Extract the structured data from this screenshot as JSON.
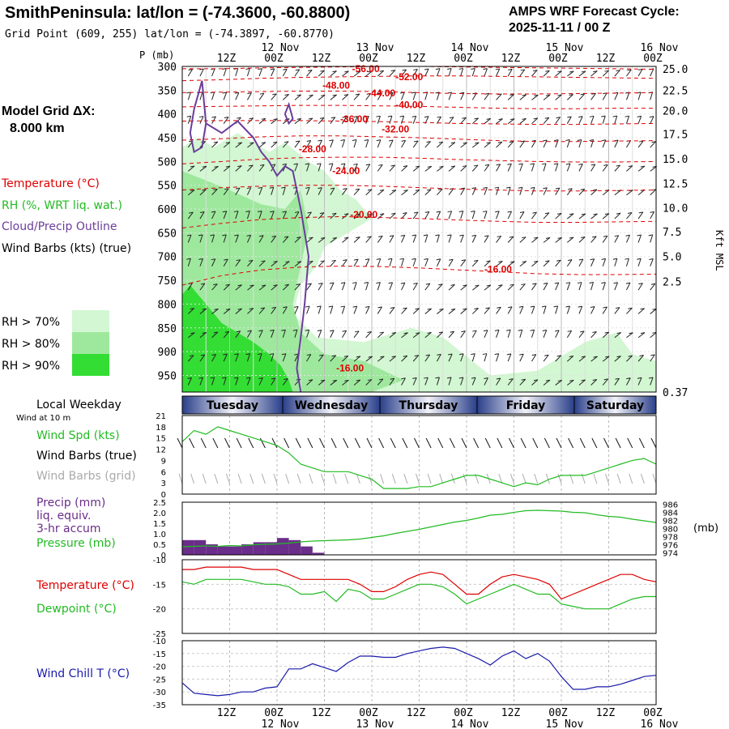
{
  "header": {
    "title": "SmithPeninsula:  lat/lon = (-74.3600, -60.8800)",
    "grid_point": "Grid Point (609, 255) lat/lon = (-74.3897, -60.8770)",
    "cycle_label": "AMPS WRF Forecast Cycle:",
    "cycle_value": "2025-11-11 / 00  Z"
  },
  "legend": {
    "model_grid_label": "Model Grid ΔX:",
    "model_grid_value": "8.000 km",
    "temperature": "Temperature (°C)",
    "rh": "RH (%, WRT liq. wat.)",
    "cloud": "Cloud/Precip Outline",
    "wind_barbs": "Wind Barbs (kts) (true)",
    "rh70": "RH > 70%",
    "rh80": "RH > 80%",
    "rh90": "RH > 90%"
  },
  "colors": {
    "rh70": "#d2f7d2",
    "rh80": "#9ee89e",
    "rh90": "#33dd33",
    "temperature": "#dd0000",
    "cloud": "#6a3d9a",
    "wind_spd": "#22bb22",
    "dewpoint": "#22bb22",
    "precip": "#6a2d8a",
    "pressure": "#22bb22",
    "windchill": "#1a1aaa",
    "grid_barb": "#aaaaaa"
  },
  "chart_data": [
    {
      "type": "contour",
      "name": "upper_air_crosssection",
      "pressure_label": "P (mb)",
      "height_label": "Kft MSL",
      "time_ticks": [
        "12Z",
        "00Z",
        "12Z",
        "00Z",
        "12Z",
        "00Z",
        "12Z",
        "00Z",
        "12Z",
        "00Z"
      ],
      "date_labels": [
        "12 Nov",
        "13 Nov",
        "14 Nov",
        "15 Nov",
        "16 Nov"
      ],
      "pressure_levels": [
        300,
        350,
        400,
        450,
        500,
        550,
        600,
        650,
        700,
        750,
        800,
        850,
        900,
        950
      ],
      "pressure_range": [
        300,
        985
      ],
      "height_ticks": [
        "25.0",
        "22.5",
        "20.0",
        "17.5",
        "15.0",
        "12.5",
        "10.0",
        "7.5",
        "5.0",
        "2.5",
        "0.37"
      ],
      "time_range_hours": [
        0,
        120
      ],
      "temperature_labels": [
        {
          "text": "-56.00",
          "t": 43.0,
          "p": 305
        },
        {
          "text": "-52.00",
          "t": 54.0,
          "p": 322
        },
        {
          "text": "-48.00",
          "t": 35.5,
          "p": 340
        },
        {
          "text": "-44.00",
          "t": 47.0,
          "p": 356
        },
        {
          "text": "-40.00",
          "t": 54.0,
          "p": 381
        },
        {
          "text": "-36.00",
          "t": 40.0,
          "p": 411
        },
        {
          "text": "-32.00",
          "t": 50.5,
          "p": 432
        },
        {
          "text": "-28.00",
          "t": 29.5,
          "p": 474
        },
        {
          "text": "-24.00",
          "t": 38.0,
          "p": 520
        },
        {
          "text": "-20.00",
          "t": 42.5,
          "p": 612
        },
        {
          "text": "-16.00",
          "t": 76.5,
          "p": 727
        },
        {
          "text": "-16.00",
          "t": 39.0,
          "p": 935
        }
      ],
      "temperature_isotherms_p": [
        [
          305,
          305,
          303,
          302,
          301,
          300,
          300,
          301,
          302,
          303,
          304,
          305,
          306
        ],
        [
          330,
          328,
          325,
          323,
          322,
          321,
          320,
          320,
          321,
          322,
          323,
          324,
          325
        ],
        [
          355,
          354,
          353,
          352,
          352,
          353,
          355,
          357,
          358,
          358,
          357,
          356,
          355
        ],
        [
          385,
          384,
          383,
          382,
          382,
          383,
          384,
          386,
          388,
          389,
          389,
          388,
          388
        ],
        [
          415,
          414,
          414,
          414,
          415,
          416,
          418,
          420,
          421,
          422,
          422,
          421,
          420
        ],
        [
          455,
          452,
          448,
          446,
          446,
          448,
          450,
          453,
          456,
          458,
          458,
          457,
          456
        ],
        [
          505,
          500,
          495,
          492,
          491,
          491,
          493,
          496,
          498,
          500,
          501,
          501,
          500
        ],
        [
          560,
          555,
          552,
          550,
          550,
          552,
          555,
          558,
          560,
          562,
          562,
          561,
          560
        ],
        [
          640,
          630,
          622,
          618,
          616,
          618,
          620,
          623,
          626,
          628,
          628,
          627,
          626
        ],
        [
          760,
          740,
          728,
          722,
          720,
          721,
          724,
          728,
          732,
          736,
          738,
          738,
          737
        ]
      ],
      "rh_regions": [
        {
          "level": 70,
          "pts": [
            [
              0,
              470
            ],
            [
              4,
              450
            ],
            [
              8,
              470
            ],
            [
              14,
              440
            ],
            [
              22,
              480
            ],
            [
              26,
              460
            ],
            [
              32,
              500
            ],
            [
              36,
              520
            ],
            [
              40,
              560
            ],
            [
              44,
              580
            ],
            [
              48,
              620
            ],
            [
              44,
              640
            ],
            [
              40,
              660
            ],
            [
              36,
              680
            ],
            [
              34,
              720
            ],
            [
              30,
              760
            ],
            [
              28,
              820
            ],
            [
              34,
              870
            ],
            [
              46,
              880
            ],
            [
              58,
              850
            ],
            [
              66,
              870
            ],
            [
              78,
              950
            ],
            [
              90,
              940
            ],
            [
              102,
              880
            ],
            [
              110,
              860
            ],
            [
              114,
              905
            ],
            [
              120,
              920
            ],
            [
              120,
              985
            ],
            [
              0,
              985
            ]
          ]
        },
        {
          "level": 80,
          "pts": [
            [
              0,
              520
            ],
            [
              6,
              540
            ],
            [
              12,
              560
            ],
            [
              20,
              590
            ],
            [
              26,
              600
            ],
            [
              30,
              560
            ],
            [
              32,
              640
            ],
            [
              30,
              720
            ],
            [
              28,
              800
            ],
            [
              30,
              860
            ],
            [
              36,
              905
            ],
            [
              46,
              920
            ],
            [
              56,
              960
            ],
            [
              48,
              985
            ],
            [
              0,
              985
            ]
          ]
        },
        {
          "level": 90,
          "pts": [
            [
              2,
              760
            ],
            [
              4,
              780
            ],
            [
              6,
              800
            ],
            [
              10,
              840
            ],
            [
              14,
              860
            ],
            [
              18,
              880
            ],
            [
              22,
              905
            ],
            [
              25,
              930
            ],
            [
              27,
              960
            ],
            [
              28,
              985
            ],
            [
              0,
              985
            ],
            [
              0,
              780
            ]
          ]
        }
      ],
      "cloud_outline": [
        [
          [
            5,
            330
          ],
          [
            6,
            420
          ],
          [
            5,
            470
          ],
          [
            3,
            480
          ],
          [
            2,
            440
          ],
          [
            3,
            390
          ],
          [
            5,
            330
          ]
        ],
        [
          [
            6,
            420
          ],
          [
            10,
            440
          ],
          [
            14,
            415
          ],
          [
            18,
            450
          ],
          [
            20,
            480
          ],
          [
            22,
            500
          ],
          [
            24,
            530
          ],
          [
            26,
            510
          ],
          [
            28,
            520
          ],
          [
            30,
            600
          ],
          [
            32,
            700
          ],
          [
            31,
            800
          ],
          [
            30,
            870
          ],
          [
            29,
            935
          ],
          [
            30,
            985
          ]
        ],
        [
          [
            26,
            400
          ],
          [
            27,
            380
          ],
          [
            28,
            410
          ],
          [
            27,
            420
          ],
          [
            26,
            400
          ]
        ]
      ]
    },
    {
      "type": "line",
      "name": "surface_wind",
      "label_local_weekday": "Local Weekday",
      "label_wind_at": "Wind at 10 m",
      "days": [
        "Tuesday",
        "Wednesday",
        "Thursday",
        "Friday",
        "Saturday"
      ],
      "ylabel_spd": "Wind Spd (kts)",
      "ylabel_barbs_true": "Wind Barbs (true)",
      "ylabel_barbs_grid": "Wind Barbs (grid)",
      "y_ticks": [
        "21",
        "18",
        "15",
        "12",
        "9",
        "6",
        "3",
        "0"
      ],
      "y_range": [
        0,
        21
      ],
      "time_hours": [
        0,
        3,
        6,
        9,
        12,
        15,
        18,
        21,
        24,
        27,
        30,
        33,
        36,
        39,
        42,
        45,
        48,
        51,
        54,
        57,
        60,
        63,
        66,
        69,
        72,
        75,
        78,
        81,
        84,
        87,
        90,
        93,
        96,
        99,
        102,
        105,
        108,
        111,
        114,
        117,
        120
      ],
      "wind_speed": [
        14,
        17,
        16,
        18,
        17,
        16,
        15,
        14,
        13,
        11,
        8,
        7,
        6,
        6,
        6,
        5,
        4,
        1.5,
        1.5,
        1.5,
        2,
        2,
        3,
        4,
        5,
        5,
        4,
        3,
        2,
        3,
        2.5,
        4,
        5,
        5,
        5,
        6,
        7,
        8,
        9,
        9.5,
        8
      ]
    },
    {
      "type": "line",
      "name": "precip_pressure",
      "ylabel_precip": "Precip (mm)",
      "ylabel_precip2": "liq. equiv.",
      "ylabel_precip3": "3-hr accum",
      "ylabel_pressure": "Pressure (mb)",
      "pressure_unit": "(mb)",
      "precip_ticks": [
        "2.5",
        "2.0",
        "1.5",
        "1.0",
        "0.5",
        "0"
      ],
      "pressure_ticks": [
        "986",
        "984",
        "982",
        "980",
        "978",
        "976",
        "974"
      ],
      "precip_range": [
        0,
        2.5
      ],
      "pressure_range": [
        973.5,
        986.5
      ],
      "time_hours": [
        0,
        3,
        6,
        9,
        12,
        15,
        18,
        21,
        24,
        27,
        30,
        33,
        36,
        39,
        42,
        45,
        48,
        51,
        54,
        57,
        60,
        63,
        66,
        69,
        72,
        75,
        78,
        81,
        84,
        87,
        90,
        93,
        96,
        99,
        102,
        105,
        108,
        111,
        114,
        117,
        120
      ],
      "precip_mm": [
        0.7,
        0.7,
        0.5,
        0.4,
        0.4,
        0.5,
        0.6,
        0.6,
        0.8,
        0.7,
        0.4,
        0.1,
        0,
        0,
        0,
        0,
        0,
        0,
        0,
        0,
        0,
        0,
        0,
        0,
        0,
        0,
        0,
        0,
        0,
        0,
        0,
        0,
        0,
        0,
        0,
        0,
        0,
        0,
        0,
        0,
        0
      ],
      "pressure_mb": [
        975.5,
        975.6,
        975.7,
        975.6,
        975.8,
        975.7,
        976.0,
        976.1,
        976.2,
        976.4,
        976.7,
        976.9,
        977.0,
        977.1,
        977.2,
        977.4,
        977.8,
        978.2,
        978.8,
        979.3,
        979.8,
        980.4,
        981.0,
        981.6,
        982.0,
        982.6,
        983.3,
        983.5,
        984.0,
        984.4,
        984.5,
        984.4,
        984.3,
        984.0,
        983.9,
        983.4,
        983.0,
        982.8,
        982.3,
        981.9,
        981.5
      ]
    },
    {
      "type": "line",
      "name": "temperature_dewpoint",
      "ylabel_temp": "Temperature (°C)",
      "ylabel_dew": "Dewpoint (°C)",
      "y_ticks": [
        "-10",
        "-15",
        "-20",
        "-25"
      ],
      "y_range": [
        -25,
        -10
      ],
      "time_hours": [
        0,
        3,
        6,
        9,
        12,
        15,
        18,
        21,
        24,
        27,
        30,
        33,
        36,
        39,
        42,
        45,
        48,
        51,
        54,
        57,
        60,
        63,
        66,
        69,
        72,
        75,
        78,
        81,
        84,
        87,
        90,
        93,
        96,
        99,
        102,
        105,
        108,
        111,
        114,
        117,
        120
      ],
      "temperature": [
        -12.0,
        -12.0,
        -11.5,
        -11.5,
        -11.5,
        -11.5,
        -12.0,
        -12.0,
        -12.0,
        -13.0,
        -14.0,
        -14.0,
        -14.0,
        -14.0,
        -14.0,
        -15.0,
        -16.5,
        -16.5,
        -15.5,
        -14.0,
        -13.0,
        -12.5,
        -13.0,
        -15.0,
        -17.0,
        -17.0,
        -15.0,
        -13.5,
        -13.0,
        -13.5,
        -14.0,
        -15.0,
        -18.0,
        -17.0,
        -16.0,
        -15.0,
        -14.0,
        -13.0,
        -13.0,
        -14.0,
        -14.5
      ],
      "dewpoint": [
        -14.5,
        -15.0,
        -14.0,
        -14.0,
        -14.0,
        -14.0,
        -14.5,
        -15.0,
        -15.0,
        -15.5,
        -17.0,
        -17.0,
        -16.5,
        -18.5,
        -16.0,
        -16.5,
        -18.0,
        -18.0,
        -17.0,
        -16.0,
        -15.0,
        -15.0,
        -15.5,
        -17.0,
        -19.0,
        -18.0,
        -17.0,
        -16.0,
        -15.0,
        -16.0,
        -17.0,
        -17.0,
        -19.0,
        -19.5,
        -20.0,
        -20.0,
        -20.0,
        -19.0,
        -18.0,
        -17.5,
        -17.5
      ]
    },
    {
      "type": "line",
      "name": "wind_chill",
      "ylabel": "Wind Chill T (°C)",
      "y_ticks": [
        "-10",
        "-15",
        "-20",
        "-25",
        "-30",
        "-35"
      ],
      "y_range": [
        -35,
        -10
      ],
      "time_hours": [
        0,
        3,
        6,
        9,
        12,
        15,
        18,
        21,
        24,
        27,
        30,
        33,
        36,
        39,
        42,
        45,
        48,
        51,
        54,
        57,
        60,
        63,
        66,
        69,
        72,
        75,
        78,
        81,
        84,
        87,
        90,
        93,
        96,
        99,
        102,
        105,
        108,
        111,
        114,
        117,
        120
      ],
      "wind_chill": [
        -26.5,
        -30.5,
        -31.0,
        -31.5,
        -31.0,
        -30.0,
        -30.0,
        -28.5,
        -28.0,
        -21.0,
        -21.0,
        -19.0,
        -20.5,
        -22.0,
        -18.5,
        -16.0,
        -16.0,
        -16.5,
        -16.5,
        -15.0,
        -14.0,
        -13.0,
        -12.5,
        -13.0,
        -15.0,
        -17.0,
        -19.5,
        -16.0,
        -14.0,
        -17.0,
        -15.0,
        -18.0,
        -24.0,
        -29.0,
        -29.0,
        -28.0,
        -28.0,
        -27.0,
        -25.5,
        -24.0,
        -23.5
      ]
    }
  ]
}
